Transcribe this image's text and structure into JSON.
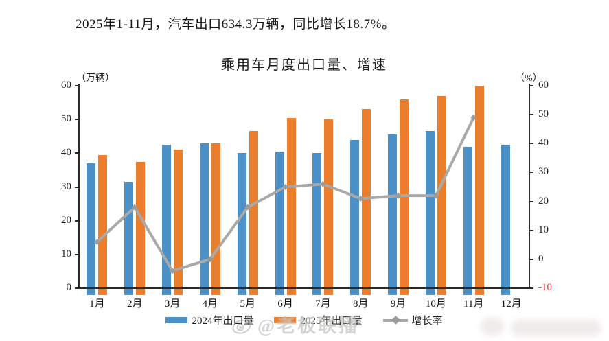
{
  "page": {
    "heading": "2025年1-11月，汽车出口634.3万辆，同比增长18.7%。",
    "watermark": "@老板联播"
  },
  "chart_data": {
    "type": "bar",
    "subtype": "grouped bars with secondary-axis line",
    "title": "乘用车月度出口量、增速",
    "categories": [
      "1月",
      "2月",
      "3月",
      "4月",
      "5月",
      "6月",
      "7月",
      "8月",
      "9月",
      "10月",
      "11月",
      "12月"
    ],
    "series": [
      {
        "name": "2024年出口量",
        "type": "bar",
        "axis": "left",
        "color": "#4b90c7",
        "values": [
          37,
          31.5,
          42.5,
          43,
          40,
          40.5,
          40,
          44,
          45.5,
          46.5,
          42,
          42.5
        ]
      },
      {
        "name": "2025年出口量",
        "type": "bar",
        "axis": "left",
        "color": "#ea7e2d",
        "values": [
          39.5,
          37.5,
          41,
          43,
          46.5,
          50.5,
          50,
          53,
          56,
          57,
          60,
          null
        ]
      },
      {
        "name": "增长率",
        "type": "line",
        "axis": "right",
        "color": "#a9a9a9",
        "marker_color": "#9c9c9c",
        "values": [
          6,
          18,
          -4,
          0,
          18,
          25,
          26,
          21,
          22,
          22,
          49,
          null
        ]
      }
    ],
    "left_axis": {
      "unit": "（万辆）",
      "min": 0,
      "max": 60,
      "step": 10
    },
    "right_axis": {
      "unit": "（%）",
      "min": -10,
      "max": 60,
      "step": 10,
      "negative_tick_color": "#e2342e"
    },
    "grid": "off",
    "legend_position": "bottom"
  }
}
